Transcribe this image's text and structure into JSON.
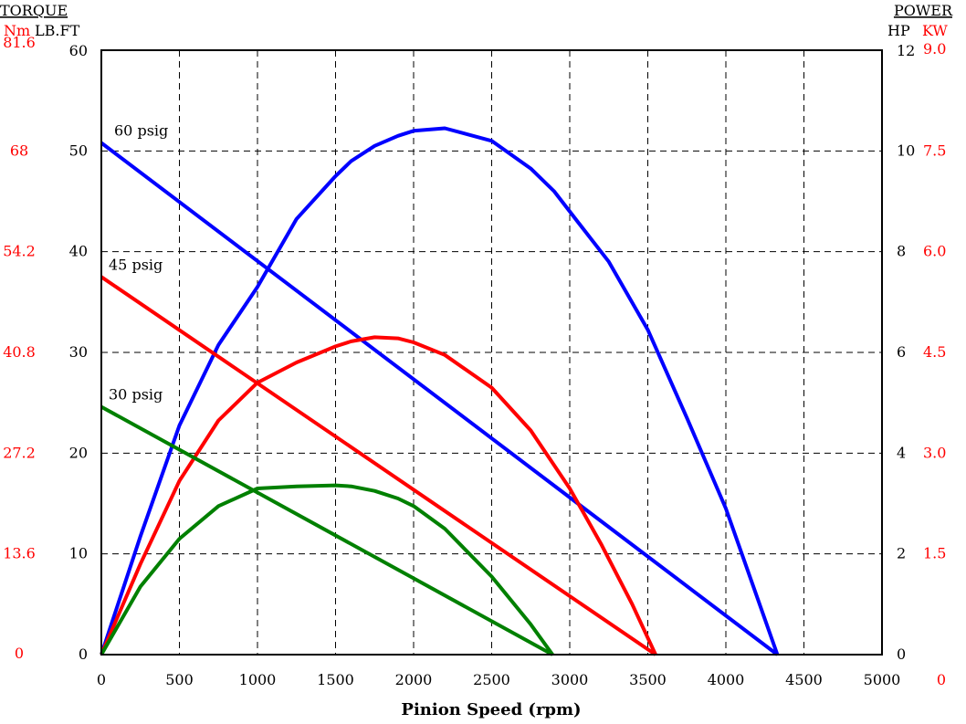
{
  "chart_data": {
    "type": "line",
    "xlabel": "Pinion Speed (rpm)",
    "xlim": [
      0,
      5000
    ],
    "x_ticks": [
      "0",
      "500",
      "1000",
      "1500",
      "2000",
      "2500",
      "3000",
      "3500",
      "4000",
      "4500",
      "5000"
    ],
    "left_axis": {
      "title": "TORQUE",
      "unit_nm": "Nm",
      "unit_lbft": "LB.FT",
      "ylim": [
        0,
        60
      ],
      "lbft_ticks": [
        "0",
        "10",
        "20",
        "30",
        "40",
        "50",
        "60"
      ],
      "nm_ticks": [
        "0",
        "13.6",
        "27.2",
        "40.8",
        "54.2",
        "68",
        "81.6"
      ]
    },
    "right_axis": {
      "title": "POWER",
      "unit_hp": "HP",
      "unit_kw": "KW",
      "ylim": [
        0,
        12
      ],
      "hp_ticks": [
        "0",
        "2",
        "4",
        "6",
        "8",
        "10",
        "12"
      ],
      "kw_ticks": [
        "0",
        "1.5",
        "3.0",
        "4.5",
        "6.0",
        "7.5",
        "9.0"
      ]
    },
    "extra_labels": {
      "kw_zero": "0"
    },
    "grid": true,
    "series": [
      {
        "name": "60 psig",
        "color": "#0000ff",
        "torque": {
          "x": [
            0,
            4330
          ],
          "y": [
            50.8,
            0
          ]
        },
        "power_hp": {
          "x": [
            0,
            250,
            500,
            750,
            1000,
            1250,
            1500,
            1600,
            1750,
            1900,
            2000,
            2200,
            2500,
            2750,
            2900,
            3050,
            3250,
            3500,
            3750,
            4000,
            4330
          ],
          "y": [
            0,
            2.35,
            4.55,
            6.15,
            7.3,
            8.65,
            9.5,
            9.8,
            10.1,
            10.3,
            10.4,
            10.45,
            10.2,
            9.65,
            9.2,
            8.6,
            7.8,
            6.45,
            4.7,
            2.9,
            0
          ]
        }
      },
      {
        "name": "45 psig",
        "color": "#ff0000",
        "torque": {
          "x": [
            0,
            3550
          ],
          "y": [
            37.5,
            0
          ]
        },
        "power_hp": {
          "x": [
            0,
            250,
            500,
            750,
            1000,
            1250,
            1500,
            1600,
            1750,
            1900,
            2000,
            2200,
            2500,
            2750,
            3000,
            3200,
            3400,
            3550
          ],
          "y": [
            0,
            1.8,
            3.45,
            4.65,
            5.4,
            5.8,
            6.12,
            6.22,
            6.3,
            6.28,
            6.2,
            5.95,
            5.3,
            4.45,
            3.3,
            2.2,
            1.0,
            0
          ]
        }
      },
      {
        "name": "30 psig",
        "color": "#008000",
        "torque": {
          "x": [
            0,
            2890
          ],
          "y": [
            24.6,
            0
          ]
        },
        "power_hp": {
          "x": [
            0,
            250,
            500,
            750,
            1000,
            1250,
            1500,
            1600,
            1750,
            1900,
            2000,
            2200,
            2500,
            2750,
            2890
          ],
          "y": [
            0,
            1.35,
            2.3,
            2.95,
            3.3,
            3.34,
            3.36,
            3.34,
            3.25,
            3.1,
            2.95,
            2.5,
            1.55,
            0.6,
            0
          ]
        }
      }
    ]
  }
}
